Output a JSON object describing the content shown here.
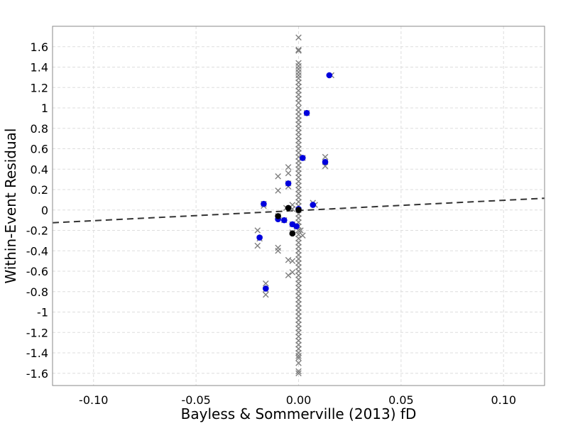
{
  "chart_data": {
    "type": "scatter",
    "xlabel": "Bayless & Sommerville (2013) fD",
    "ylabel": "Within-Event Residual",
    "xlim": [
      -0.12,
      0.12
    ],
    "ylim": [
      -1.72,
      1.8
    ],
    "xticks": [
      -0.1,
      -0.05,
      0.0,
      0.05,
      0.1
    ],
    "xtick_labels": [
      "-0.10",
      "-0.05",
      "0.00",
      "0.05",
      "0.10"
    ],
    "yticks": [
      -1.6,
      -1.4,
      -1.2,
      -1,
      -0.8,
      -0.6,
      -0.4,
      -0.2,
      0,
      0.2,
      0.4,
      0.6,
      0.8,
      1,
      1.2,
      1.4,
      1.6
    ],
    "ytick_labels": [
      "-1.6",
      "-1.4",
      "-1.2",
      "-1",
      "-0.8",
      "-0.6",
      "-0.4",
      "-0.2",
      "0",
      "0.2",
      "0.4",
      "0.6",
      "0.8",
      "1",
      "1.2",
      "1.4",
      "1.6"
    ],
    "grid": true,
    "series": [
      {
        "marker": "x",
        "color": "#808080",
        "points": [
          [
            0.0,
            1.69
          ],
          [
            0.0,
            1.57
          ],
          [
            0.0,
            1.56
          ],
          [
            0.0,
            1.44
          ],
          [
            0.0,
            1.41
          ],
          [
            0.0,
            1.38
          ],
          [
            0.0,
            1.35
          ],
          [
            0.0,
            1.32
          ],
          [
            0.0,
            1.29
          ],
          [
            0.0,
            1.25
          ],
          [
            0.0,
            1.21
          ],
          [
            0.0,
            1.17
          ],
          [
            0.0,
            1.13
          ],
          [
            0.0,
            1.09
          ],
          [
            0.0,
            1.05
          ],
          [
            0.0,
            1.0
          ],
          [
            0.0,
            0.96
          ],
          [
            0.0,
            0.92
          ],
          [
            0.0,
            0.88
          ],
          [
            0.0,
            0.84
          ],
          [
            0.0,
            0.8
          ],
          [
            0.0,
            0.76
          ],
          [
            0.0,
            0.72
          ],
          [
            0.0,
            0.68
          ],
          [
            0.0,
            0.64
          ],
          [
            0.0,
            0.6
          ],
          [
            0.0,
            0.56
          ],
          [
            0.0,
            0.52
          ],
          [
            0.0,
            0.48
          ],
          [
            0.0,
            0.44
          ],
          [
            0.0,
            0.4
          ],
          [
            0.0,
            0.36
          ],
          [
            0.0,
            0.32
          ],
          [
            0.0,
            0.28
          ],
          [
            0.0,
            0.24
          ],
          [
            0.0,
            0.2
          ],
          [
            0.0,
            0.16
          ],
          [
            0.0,
            0.12
          ],
          [
            0.0,
            0.08
          ],
          [
            0.0,
            0.04
          ],
          [
            0.0,
            0.0
          ],
          [
            0.0,
            -0.04
          ],
          [
            0.0,
            -0.08
          ],
          [
            0.0,
            -0.12
          ],
          [
            0.0,
            -0.16
          ],
          [
            0.0,
            -0.2
          ],
          [
            0.0,
            -0.24
          ],
          [
            0.0,
            -0.28
          ],
          [
            0.0,
            -0.32
          ],
          [
            0.0,
            -0.36
          ],
          [
            0.0,
            -0.4
          ],
          [
            0.0,
            -0.44
          ],
          [
            0.0,
            -0.48
          ],
          [
            0.0,
            -0.52
          ],
          [
            0.0,
            -0.56
          ],
          [
            0.0,
            -0.6
          ],
          [
            0.0,
            -0.64
          ],
          [
            0.0,
            -0.68
          ],
          [
            0.0,
            -0.72
          ],
          [
            0.0,
            -0.76
          ],
          [
            0.0,
            -0.8
          ],
          [
            0.0,
            -0.84
          ],
          [
            0.0,
            -0.88
          ],
          [
            0.0,
            -0.92
          ],
          [
            0.0,
            -0.96
          ],
          [
            0.0,
            -1.0
          ],
          [
            0.0,
            -1.04
          ],
          [
            0.0,
            -1.08
          ],
          [
            0.0,
            -1.12
          ],
          [
            0.0,
            -1.16
          ],
          [
            0.0,
            -1.2
          ],
          [
            0.0,
            -1.24
          ],
          [
            0.0,
            -1.28
          ],
          [
            0.0,
            -1.32
          ],
          [
            0.0,
            -1.36
          ],
          [
            0.0,
            -1.4
          ],
          [
            0.0,
            -1.43
          ],
          [
            0.0,
            -1.45
          ],
          [
            0.0,
            -1.5
          ],
          [
            0.0,
            -1.58
          ],
          [
            0.0,
            -1.6
          ],
          [
            0.016,
            1.32
          ],
          [
            0.004,
            0.95
          ],
          [
            0.002,
            0.51
          ],
          [
            0.013,
            0.52
          ],
          [
            0.013,
            0.43
          ],
          [
            0.013,
            0.47
          ],
          [
            -0.005,
            0.42
          ],
          [
            -0.005,
            0.36
          ],
          [
            -0.01,
            0.33
          ],
          [
            -0.01,
            0.19
          ],
          [
            -0.005,
            0.26
          ],
          [
            -0.005,
            0.23
          ],
          [
            0.007,
            0.07
          ],
          [
            0.008,
            0.05
          ],
          [
            -0.017,
            0.06
          ],
          [
            -0.017,
            0.04
          ],
          [
            -0.003,
            0.05
          ],
          [
            -0.003,
            0.01
          ],
          [
            -0.006,
            0.02
          ],
          [
            -0.01,
            -0.06
          ],
          [
            -0.007,
            -0.1
          ],
          [
            -0.003,
            -0.14
          ],
          [
            -0.001,
            -0.16
          ],
          [
            0.001,
            -0.2
          ],
          [
            0.002,
            -0.25
          ],
          [
            -0.003,
            -0.22
          ],
          [
            -0.02,
            -0.2
          ],
          [
            -0.019,
            -0.28
          ],
          [
            -0.02,
            -0.35
          ],
          [
            -0.01,
            -0.37
          ],
          [
            -0.01,
            -0.4
          ],
          [
            -0.005,
            -0.49
          ],
          [
            -0.003,
            -0.5
          ],
          [
            -0.003,
            -0.61
          ],
          [
            -0.005,
            -0.64
          ],
          [
            -0.016,
            -0.72
          ],
          [
            -0.016,
            -0.83
          ],
          [
            -0.016,
            -0.78
          ]
        ]
      },
      {
        "marker": "circle",
        "color": "#0000dd",
        "points": [
          [
            0.015,
            1.32
          ],
          [
            0.004,
            0.95
          ],
          [
            0.002,
            0.51
          ],
          [
            0.013,
            0.47
          ],
          [
            -0.005,
            0.26
          ],
          [
            0.007,
            0.05
          ],
          [
            -0.017,
            0.06
          ],
          [
            0.0,
            0.01
          ],
          [
            -0.01,
            -0.09
          ],
          [
            -0.007,
            -0.1
          ],
          [
            -0.003,
            -0.14
          ],
          [
            -0.001,
            -0.16
          ],
          [
            -0.019,
            -0.27
          ],
          [
            -0.016,
            -0.77
          ]
        ]
      },
      {
        "marker": "circle",
        "color": "#000000",
        "points": [
          [
            -0.005,
            0.02
          ],
          [
            0.0,
            0.0
          ],
          [
            -0.01,
            -0.06
          ],
          [
            -0.003,
            -0.23
          ]
        ]
      }
    ],
    "trendline": {
      "style": "dashed",
      "color": "#333333",
      "x": [
        -0.12,
        0.12
      ],
      "y": [
        -0.125,
        0.115
      ]
    }
  }
}
